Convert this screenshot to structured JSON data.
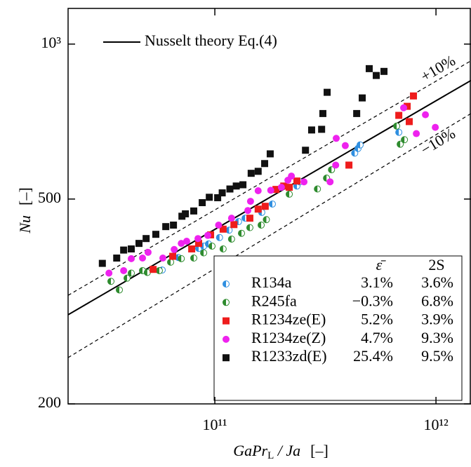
{
  "chart_data": {
    "type": "scatter",
    "xlabel": {
      "main": "GaPr",
      "sub": "L",
      "rest": " / Ja",
      "unit": "[–]"
    },
    "ylabel": {
      "main": "Nu",
      "unit": "[–]"
    },
    "log_x": true,
    "log_y": true,
    "xlim": [
      21700000000.0,
      1440000000000.0
    ],
    "ylim": [
      200,
      1173
    ],
    "xticks": [
      {
        "value": 100000000000.0,
        "label": "10¹¹"
      },
      {
        "value": 1000000000000.0,
        "label": "10¹²"
      }
    ],
    "yticks": [
      {
        "value": 1000,
        "label": "10³"
      },
      500,
      200
    ],
    "lines": [
      {
        "name": "Nusselt theory Eq.(4)",
        "style": "solid",
        "x": [
          21700000000.0,
          1440000000000.0
        ],
        "values": [
          298,
          850
        ]
      },
      {
        "label": "+10%",
        "style": "dashed",
        "x": [
          21700000000.0,
          1440000000000.0
        ],
        "values": [
          325,
          928
        ]
      },
      {
        "label": "−10%",
        "style": "dashed",
        "x": [
          21700000000.0,
          1440000000000.0
        ],
        "values": [
          246,
          733
        ]
      }
    ],
    "legend_columns": [
      "ε̄",
      "2S"
    ],
    "series": [
      {
        "name": "R134a",
        "marker": "half-circle",
        "color": "#2f8fe0",
        "stats": [
          "3.1%",
          "3.6%"
        ],
        "x": [
          57800000000.0,
          68400000000.0,
          84500000000.0,
          89000000000.0,
          93600000000.0,
          105000000000.0,
          116000000000.0,
          128000000000.0,
          137000000000.0,
          163000000000.0,
          169000000000.0,
          182000000000.0,
          235000000000.0,
          242000000000.0,
          429000000000.0,
          444000000000.0,
          454000000000.0,
          679000000000.0
        ],
        "values": [
          364,
          385,
          401,
          405,
          409,
          421,
          435,
          452,
          459,
          471,
          484,
          489,
          530,
          540,
          614,
          627,
          637,
          674
        ]
      },
      {
        "name": "R245fa",
        "marker": "half-circle",
        "color": "#2e8b2e",
        "stats": [
          "−0.3%",
          "6.8%"
        ],
        "x": [
          33900000000.0,
          37000000000.0,
          40100000000.0,
          41900000000.0,
          47100000000.0,
          49500000000.0,
          56100000000.0,
          63100000000.0,
          70500000000.0,
          80300000000.0,
          89000000000.0,
          97100000000.0,
          109000000000.0,
          119000000000.0,
          132000000000.0,
          144000000000.0,
          162000000000.0,
          171000000000.0,
          217000000000.0,
          291000000000.0,
          320000000000.0,
          337000000000.0,
          664000000000.0,
          689000000000.0,
          720000000000.0
        ],
        "values": [
          346,
          333,
          351,
          359,
          363,
          360,
          363,
          377,
          383,
          384,
          393,
          405,
          400,
          418,
          429,
          440,
          445,
          456,
          511,
          523,
          549,
          570,
          693,
          639,
          652
        ]
      },
      {
        "name": "R1234ze(E)",
        "marker": "square",
        "color": "#ee1c1c",
        "stats": [
          "5.2%",
          "3.9%"
        ],
        "x": [
          52600000000.0,
          64500000000.0,
          78600000000.0,
          84500000000.0,
          95700000000.0,
          109000000000.0,
          122000000000.0,
          144000000000.0,
          157000000000.0,
          169000000000.0,
          189000000000.0,
          205000000000.0,
          217000000000.0,
          235000000000.0,
          404000000000.0,
          679000000000.0,
          741000000000.0,
          791000000000.0,
          757000000000.0
        ],
        "values": [
          365,
          387,
          400,
          410,
          426,
          437,
          446,
          459,
          478,
          484,
          522,
          530,
          527,
          542,
          582,
          727,
          757,
          793,
          707
        ]
      },
      {
        "name": "R1234ze(Z)",
        "marker": "circle",
        "color": "#ee22ee",
        "stats": [
          "4.7%",
          "9.3%"
        ],
        "x": [
          33200000000.0,
          38700000000.0,
          41900000000.0,
          47100000000.0,
          49900000000.0,
          58200000000.0,
          65500000000.0,
          70500000000.0,
          74600000000.0,
          83900000000.0,
          92900000000.0,
          104000000000.0,
          119000000000.0,
          141000000000.0,
          145000000000.0,
          157000000000.0,
          179000000000.0,
          200000000000.0,
          214000000000.0,
          222000000000.0,
          253000000000.0,
          332000000000.0,
          352000000000.0,
          354000000000.0,
          389000000000.0,
          714000000000.0,
          815000000000.0,
          896000000000.0,
          993000000000.0
        ],
        "values": [
          359,
          363,
          383,
          384,
          394,
          384,
          399,
          410,
          414,
          419,
          425,
          445,
          459,
          475,
          495,
          519,
          520,
          527,
          544,
          554,
          540,
          540,
          582,
          656,
          635,
          752,
          670,
          729,
          689
        ]
      },
      {
        "name": "R1233zd(E)",
        "marker": "square",
        "color": "#111111",
        "stats": [
          "25.4%",
          "9.5%"
        ],
        "x": [
          31000000000.0,
          36000000000.0,
          38700000000.0,
          41900000000.0,
          45400000000.0,
          48900000000.0,
          54100000000.0,
          60000000000.0,
          65000000000.0,
          71000000000.0,
          73600000000.0,
          80300000000.0,
          87700000000.0,
          94400000000.0,
          103000000000.0,
          108000000000.0,
          117000000000.0,
          125000000000.0,
          134000000000.0,
          146000000000.0,
          157000000000.0,
          168000000000.0,
          178000000000.0,
          257000000000.0,
          274000000000.0,
          304000000000.0,
          308000000000.0,
          322000000000.0,
          438000000000.0,
          464000000000.0,
          499000000000.0,
          537000000000.0,
          582000000000.0
        ],
        "values": [
          375,
          384,
          398,
          400,
          410,
          419,
          427,
          442,
          445,
          463,
          468,
          474,
          492,
          504,
          503,
          514,
          523,
          530,
          533,
          561,
          566,
          586,
          612,
          622,
          681,
          683,
          733,
          806,
          733,
          786,
          896,
          869,
          885
        ]
      }
    ]
  }
}
